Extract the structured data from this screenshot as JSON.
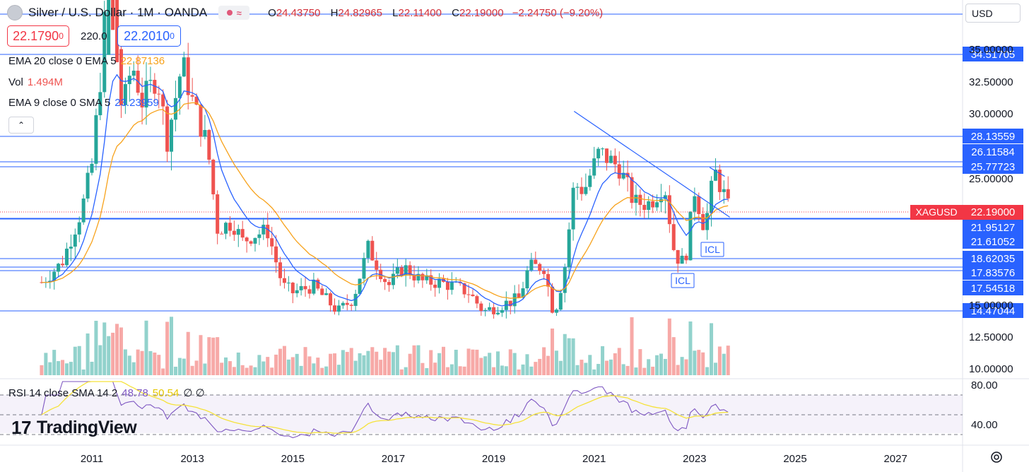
{
  "header": {
    "symbol_title": "Silver / U.S. Dollar · 1M · OANDA",
    "ohlc": {
      "o_label": "O",
      "o_value": "24.43750",
      "h_label": "H",
      "h_value": "24.82965",
      "l_label": "L",
      "l_value": "22.11400",
      "c_label": "C",
      "c_value": "22.19000",
      "change": "−2.24750 (−9.20%)"
    },
    "bid_price": "22.1790",
    "bid_super": "0",
    "spread": "220.0",
    "ask_price": "22.2010",
    "ask_super": "0"
  },
  "indicators": {
    "ema20": {
      "label": "EMA 20 close 0 EMA 5",
      "value": "22.87136"
    },
    "vol": {
      "label": "Vol",
      "value": "1.494M"
    },
    "ema9": {
      "label": "EMA 9 close 0 SMA 5",
      "value": "23.23959"
    },
    "rsi": {
      "label": "RSI 14 close SMA 14 2",
      "value1": "48.78",
      "value2": "50.54",
      "extra": "∅ ∅"
    }
  },
  "currency_selector": {
    "value": "USD"
  },
  "price_axis": {
    "ticks": [
      "35.00000",
      "32.50000",
      "30.00000",
      "25.00000",
      "15.00000",
      "12.50000",
      "10.00000"
    ],
    "level_labels": [
      "34.51705",
      "28.13559",
      "26.11584",
      "25.77723",
      "21.95127",
      "21.61052",
      "18.62035",
      "17.83576",
      "17.54518",
      "14.47044"
    ],
    "symbol_tag": "XAGUSD",
    "current_price": "22.19000"
  },
  "rsi_axis": {
    "ticks": [
      "80.00",
      "40.00"
    ]
  },
  "time_axis": {
    "labels": [
      "2011",
      "2013",
      "2015",
      "2017",
      "2019",
      "2021",
      "2023",
      "2025",
      "2027"
    ]
  },
  "annotations": {
    "icl_1": "ICL",
    "icl_2": "ICL"
  },
  "branding": {
    "logo_text": "TradingView",
    "logo_mark": "17"
  },
  "colors": {
    "up": "#26a69a",
    "down": "#ef5350",
    "level_line": "#2962ff",
    "ema_fast": "#2962ff",
    "ema_slow": "#f7a21b",
    "rsi_line": "#7e57c2",
    "rsi_sma": "#f5e23a",
    "price_tag": "#f23645"
  },
  "chart_data": {
    "type": "candlestick",
    "title": "Silver / U.S. Dollar · 1M · OANDA",
    "ylim": [
      9.5,
      36
    ],
    "x_range": [
      2010.0,
      2028.2
    ],
    "horizontal_levels": [
      34.51705,
      28.13559,
      26.11584,
      25.77723,
      21.95127,
      21.61052,
      18.62035,
      17.83576,
      17.54518,
      14.47044
    ],
    "current_price": 22.19,
    "trendlines": [
      {
        "from": [
          2020.6,
          30.2
        ],
        "to": [
          2023.7,
          21.9
        ]
      },
      {
        "from": [
          2023.3,
          25.8
        ],
        "to": [
          2023.6,
          25.1
        ]
      }
    ],
    "price_path": [
      [
        2010.0,
        16.8
      ],
      [
        2010.4,
        18.3
      ],
      [
        2010.8,
        22.5
      ],
      [
        2011.0,
        26.0
      ],
      [
        2011.2,
        34.0
      ],
      [
        2011.35,
        43.0
      ],
      [
        2011.6,
        30.0
      ],
      [
        2011.8,
        34.0
      ],
      [
        2012.0,
        31.0
      ],
      [
        2012.3,
        33.0
      ],
      [
        2012.5,
        28.0
      ],
      [
        2012.8,
        34.0
      ],
      [
        2013.0,
        31.0
      ],
      [
        2013.3,
        27.5
      ],
      [
        2013.5,
        21.0
      ],
      [
        2013.8,
        21.5
      ],
      [
        2014.0,
        20.0
      ],
      [
        2014.2,
        20.5
      ],
      [
        2014.5,
        20.8
      ],
      [
        2014.8,
        16.5
      ],
      [
        2015.0,
        16.0
      ],
      [
        2015.4,
        16.5
      ],
      [
        2015.9,
        14.5
      ],
      [
        2016.2,
        15.5
      ],
      [
        2016.5,
        19.5
      ],
      [
        2016.9,
        16.5
      ],
      [
        2017.2,
        18.0
      ],
      [
        2017.6,
        16.8
      ],
      [
        2017.9,
        16.8
      ],
      [
        2018.2,
        16.5
      ],
      [
        2018.5,
        16.0
      ],
      [
        2018.8,
        14.5
      ],
      [
        2019.2,
        15.1
      ],
      [
        2019.5,
        15.5
      ],
      [
        2019.7,
        18.0
      ],
      [
        2020.0,
        18.0
      ],
      [
        2020.2,
        14.2
      ],
      [
        2020.4,
        17.5
      ],
      [
        2020.6,
        24.5
      ],
      [
        2020.8,
        24.0
      ],
      [
        2021.1,
        27.0
      ],
      [
        2021.5,
        25.8
      ],
      [
        2021.8,
        23.0
      ],
      [
        2022.1,
        23.0
      ],
      [
        2022.4,
        24.5
      ],
      [
        2022.6,
        19.0
      ],
      [
        2022.8,
        18.2
      ],
      [
        2023.0,
        24.0
      ],
      [
        2023.2,
        21.0
      ],
      [
        2023.4,
        25.5
      ],
      [
        2023.6,
        23.5
      ],
      [
        2023.7,
        22.19
      ]
    ],
    "rsi_ylim": [
      30,
      85
    ],
    "rsi_levels": [
      70,
      50,
      30
    ]
  }
}
